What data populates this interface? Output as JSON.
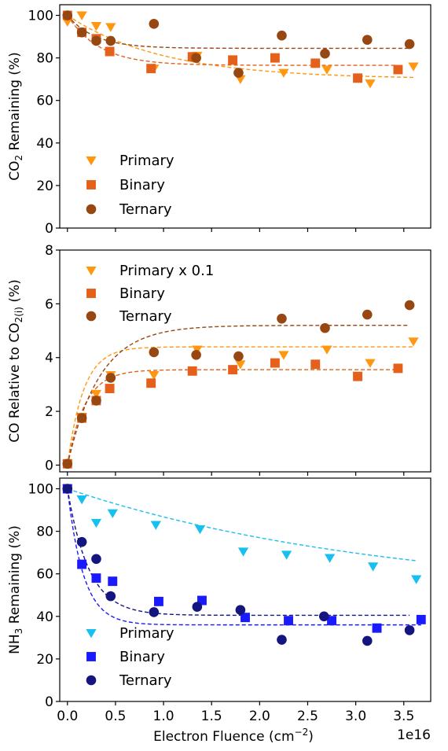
{
  "chart_data": [
    {
      "type": "scatter",
      "panel": "top",
      "ylabel": "CO₂ Remaining (%)",
      "ylabel_parts": {
        "a": "CO",
        "sub": "2",
        "b": " Remaining (%)"
      },
      "xlim": [
        -0.08,
        3.78
      ],
      "ylim": [
        0,
        105
      ],
      "yticks": [
        0,
        20,
        40,
        60,
        80,
        100
      ],
      "xticks": [
        0.0,
        0.5,
        1.0,
        1.5,
        2.0,
        2.5,
        3.0,
        3.5
      ],
      "legend_position": "lower-left",
      "series": [
        {
          "name": "Primary",
          "marker": "triangle-down",
          "color": "#ff9810",
          "x": [
            0.0,
            0.15,
            0.3,
            0.45,
            0.9,
            1.35,
            1.8,
            2.25,
            2.7,
            3.15,
            3.6
          ],
          "y": [
            97,
            100,
            95,
            94.5,
            75,
            81,
            70,
            73,
            74.5,
            68,
            76
          ],
          "fit": {
            "a": 30,
            "b": 70,
            "k": 1.0
          }
        },
        {
          "name": "Binary",
          "marker": "square",
          "color": "#e4601b",
          "x": [
            0.0,
            0.15,
            0.3,
            0.44,
            0.87,
            1.3,
            1.72,
            2.16,
            2.58,
            3.02,
            3.44
          ],
          "y": [
            100,
            92,
            89,
            83,
            75,
            80.5,
            79,
            80,
            77.5,
            70.5,
            74.5
          ],
          "fit": {
            "a": 23.5,
            "b": 76.5,
            "k": 3.0
          }
        },
        {
          "name": "Ternary",
          "marker": "circle",
          "color": "#974712",
          "x": [
            0.0,
            0.15,
            0.3,
            0.45,
            0.9,
            1.34,
            1.78,
            2.23,
            2.68,
            3.12,
            3.56
          ],
          "y": [
            100,
            92,
            88,
            88,
            96,
            80,
            73,
            90.5,
            82,
            88.5,
            86.5
          ],
          "fit": {
            "a": 15.5,
            "b": 84.5,
            "k": 3.5
          }
        }
      ]
    },
    {
      "type": "scatter",
      "panel": "middle",
      "ylabel": "CO Relative to CO₂(i) (%)",
      "ylabel_parts": {
        "a": "CO Relative to CO",
        "sub": "2(i)",
        "b": " (%)"
      },
      "xlim": [
        -0.08,
        3.78
      ],
      "ylim": [
        -0.25,
        8
      ],
      "yticks": [
        0,
        2,
        4,
        6,
        8
      ],
      "xticks": [
        0.0,
        0.5,
        1.0,
        1.5,
        2.0,
        2.5,
        3.0,
        3.5
      ],
      "legend_position": "upper-left",
      "series": [
        {
          "name": "Primary x 0.1",
          "marker": "triangle-down",
          "color": "#ff9810",
          "x": [
            0.0,
            0.15,
            0.3,
            0.45,
            0.9,
            1.35,
            1.8,
            2.25,
            2.7,
            3.15,
            3.6
          ],
          "y": [
            0.05,
            1.8,
            2.65,
            3.35,
            3.35,
            4.3,
            3.75,
            4.1,
            4.3,
            3.8,
            4.6
          ],
          "fit": {
            "a": -4.4,
            "b": 4.4,
            "k": 6.0
          }
        },
        {
          "name": "Binary",
          "marker": "square",
          "color": "#e4601b",
          "x": [
            0.0,
            0.15,
            0.3,
            0.44,
            0.87,
            1.3,
            1.72,
            2.16,
            2.58,
            3.02,
            3.44
          ],
          "y": [
            0.05,
            1.75,
            2.4,
            2.85,
            3.05,
            3.5,
            3.55,
            3.8,
            3.75,
            3.3,
            3.6
          ],
          "fit": {
            "a": -3.55,
            "b": 3.55,
            "k": 5.5
          }
        },
        {
          "name": "Ternary",
          "marker": "circle",
          "color": "#974712",
          "x": [
            0.0,
            0.15,
            0.3,
            0.45,
            0.9,
            1.34,
            1.78,
            2.23,
            2.68,
            3.12,
            3.56
          ],
          "y": [
            0.05,
            1.75,
            2.4,
            3.25,
            4.2,
            4.1,
            4.05,
            5.45,
            5.1,
            5.6,
            5.95
          ],
          "fit": {
            "a": -5.2,
            "b": 5.2,
            "k": 3.0
          }
        }
      ]
    },
    {
      "type": "scatter",
      "panel": "bottom",
      "ylabel": "NH₃ Remaining (%)",
      "ylabel_parts": {
        "a": "NH",
        "sub": "3",
        "b": " Remaining (%)"
      },
      "xlabel": "Electron Fluence (cm⁻²)",
      "xlabel_parts": {
        "a": "Electron Fluence (cm",
        "sup": "−2",
        "b": ")"
      },
      "x_multiplier": "1e16",
      "xlim": [
        -0.08,
        3.78
      ],
      "ylim": [
        0,
        105
      ],
      "yticks": [
        0,
        20,
        40,
        60,
        80,
        100
      ],
      "xticks": [
        0.0,
        0.5,
        1.0,
        1.5,
        2.0,
        2.5,
        3.0,
        3.5
      ],
      "xtick_labels": [
        "0.0",
        "0.5",
        "1.0",
        "1.5",
        "2.0",
        "2.5",
        "3.0",
        "3.5"
      ],
      "legend_position": "lower-left",
      "series": [
        {
          "name": "Primary",
          "marker": "triangle-down",
          "color": "#18c0f0",
          "x": [
            0.0,
            0.15,
            0.3,
            0.47,
            0.92,
            1.38,
            1.83,
            2.28,
            2.73,
            3.18,
            3.63
          ],
          "y": [
            100,
            95,
            84,
            88.5,
            83,
            81,
            70.5,
            69,
            67.5,
            63.5,
            57.5
          ],
          "fit": {
            "a": 51,
            "b": 49,
            "k": 0.3
          }
        },
        {
          "name": "Binary",
          "marker": "square",
          "color": "#1a1aff",
          "x": [
            0.0,
            0.15,
            0.3,
            0.47,
            0.95,
            1.4,
            1.85,
            2.3,
            2.75,
            3.22,
            3.68
          ],
          "y": [
            100,
            64.5,
            58,
            56.5,
            47,
            47.5,
            39.5,
            38,
            38,
            34.5,
            38.5
          ],
          "fit": {
            "a": 64,
            "b": 36,
            "k": 6.0
          }
        },
        {
          "name": "Ternary",
          "marker": "circle",
          "color": "#151580",
          "x": [
            0.0,
            0.15,
            0.3,
            0.45,
            0.9,
            1.35,
            1.8,
            2.23,
            2.67,
            3.12,
            3.56
          ],
          "y": [
            100,
            75,
            67,
            49.5,
            42,
            44.5,
            43,
            29,
            40,
            28.5,
            33.5
          ],
          "fit": {
            "a": 59.5,
            "b": 40.5,
            "k": 4.5
          }
        }
      ]
    }
  ]
}
